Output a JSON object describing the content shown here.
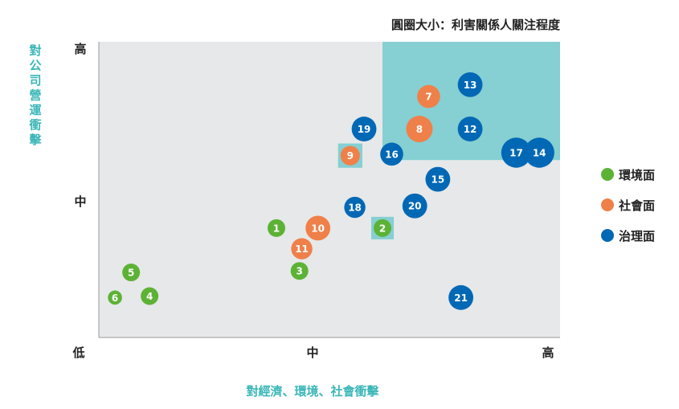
{
  "chart_data": {
    "type": "scatter",
    "title": "",
    "size_note": "圓圈大小：利害關係人關注程度",
    "xlabel": "對經濟、環境、社會衝擊",
    "ylabel": "對公司營運衝擊",
    "x_ticks": [
      "低",
      "中",
      "高"
    ],
    "y_ticks": [
      "高",
      "中"
    ],
    "xlim": [
      0,
      100
    ],
    "ylim": [
      0,
      100
    ],
    "grid": false,
    "legend_position": "right",
    "series": [
      {
        "name": "環境面",
        "color": "#5cb235"
      },
      {
        "name": "社會面",
        "color": "#ef8049"
      },
      {
        "name": "治理面",
        "color": "#0068b5"
      }
    ],
    "points": [
      {
        "label": "1",
        "series": "環境面",
        "x": 38.5,
        "y": 37.0,
        "size": 1
      },
      {
        "label": "2",
        "series": "環境面",
        "x": 61.5,
        "y": 37.0,
        "size": 1,
        "highlight": true
      },
      {
        "label": "3",
        "series": "環境面",
        "x": 43.5,
        "y": 22.5,
        "size": 1
      },
      {
        "label": "4",
        "series": "環境面",
        "x": 11.0,
        "y": 14.0,
        "size": 1
      },
      {
        "label": "5",
        "series": "環境面",
        "x": 7.0,
        "y": 22.0,
        "size": 1
      },
      {
        "label": "6",
        "series": "環境面",
        "x": 3.5,
        "y": 13.5,
        "size": 0.8
      },
      {
        "label": "7",
        "series": "社會面",
        "x": 71.5,
        "y": 81.5,
        "size": 1.3
      },
      {
        "label": "8",
        "series": "社會面",
        "x": 69.5,
        "y": 70.5,
        "size": 1.5
      },
      {
        "label": "9",
        "series": "社會面",
        "x": 54.5,
        "y": 61.5,
        "size": 1.1,
        "highlight": true
      },
      {
        "label": "10",
        "series": "社會面",
        "x": 47.5,
        "y": 37.0,
        "size": 1.4
      },
      {
        "label": "11",
        "series": "社會面",
        "x": 44.0,
        "y": 30.0,
        "size": 1.2
      },
      {
        "label": "12",
        "series": "治理面",
        "x": 80.5,
        "y": 70.5,
        "size": 1.4
      },
      {
        "label": "13",
        "series": "治理面",
        "x": 80.5,
        "y": 85.5,
        "size": 1.4
      },
      {
        "label": "14",
        "series": "治理面",
        "x": 95.5,
        "y": 62.5,
        "size": 1.7
      },
      {
        "label": "15",
        "series": "治理面",
        "x": 73.5,
        "y": 53.5,
        "size": 1.4
      },
      {
        "label": "16",
        "series": "治理面",
        "x": 63.5,
        "y": 62.0,
        "size": 1.3
      },
      {
        "label": "17",
        "series": "治理面",
        "x": 90.5,
        "y": 62.5,
        "size": 1.7
      },
      {
        "label": "18",
        "series": "治理面",
        "x": 55.5,
        "y": 44.0,
        "size": 1.2
      },
      {
        "label": "19",
        "series": "治理面",
        "x": 57.5,
        "y": 70.5,
        "size": 1.4
      },
      {
        "label": "20",
        "series": "治理面",
        "x": 68.5,
        "y": 44.5,
        "size": 1.4
      },
      {
        "label": "21",
        "series": "治理面",
        "x": 78.5,
        "y": 13.5,
        "size": 1.4
      }
    ],
    "highlight_region": {
      "x": [
        61.5,
        100
      ],
      "y": [
        60,
        100
      ]
    }
  }
}
